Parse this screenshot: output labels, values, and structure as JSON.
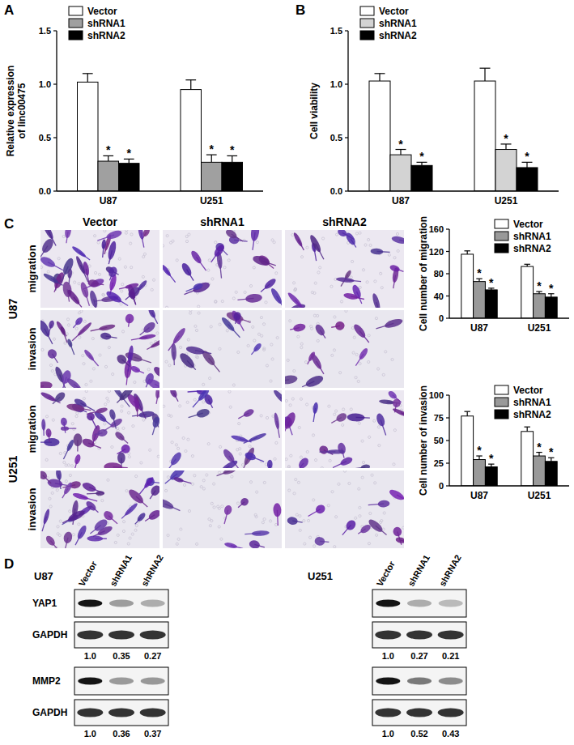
{
  "panel_labels": [
    "A",
    "B",
    "C",
    "D"
  ],
  "chart_data": [
    {
      "type": "bar",
      "y_label": "Relative expression of linc00475",
      "categories": [
        "U87",
        "U251"
      ],
      "series": [
        {
          "name": "Vector",
          "color": "#ffffff",
          "values": [
            1.02,
            0.95
          ],
          "errors": [
            0.08,
            0.09
          ]
        },
        {
          "name": "shRNA1",
          "color": "#a0a0a0",
          "values": [
            0.28,
            0.27
          ],
          "errors": [
            0.05,
            0.07
          ],
          "annotation": "*"
        },
        {
          "name": "shRNA2",
          "color": "#000000",
          "values": [
            0.26,
            0.27
          ],
          "errors": [
            0.04,
            0.06
          ],
          "annotation": "*"
        }
      ],
      "ylim": [
        0,
        1.5
      ],
      "yticks": [
        {
          "value": 0,
          "label": "0.0"
        },
        {
          "value": 0.5,
          "label": "0.5"
        },
        {
          "value": 1,
          "label": "1.0"
        },
        {
          "value": 1.5,
          "label": "1.5"
        }
      ],
      "legend": "top-left"
    },
    {
      "type": "bar",
      "y_label": "Cell viability",
      "categories": [
        "U87",
        "U251"
      ],
      "series": [
        {
          "name": "Vector",
          "color": "#ffffff",
          "values": [
            1.03,
            1.03
          ],
          "errors": [
            0.07,
            0.12
          ]
        },
        {
          "name": "shRNA1",
          "color": "#d3d3d3",
          "values": [
            0.34,
            0.39
          ],
          "errors": [
            0.05,
            0.05
          ],
          "annotation": "*"
        },
        {
          "name": "shRNA2",
          "color": "#000000",
          "values": [
            0.24,
            0.22
          ],
          "errors": [
            0.03,
            0.05
          ],
          "annotation": "*"
        }
      ],
      "ylim": [
        0,
        1.5
      ],
      "yticks": [
        {
          "value": 0,
          "label": "0.0"
        },
        {
          "value": 0.5,
          "label": "0.5"
        },
        {
          "value": 1,
          "label": "1.0"
        },
        {
          "value": 1.5,
          "label": "1.5"
        }
      ],
      "legend": "top-left"
    },
    {
      "type": "bar",
      "y_label": "Cell number of migration",
      "categories": [
        "U87",
        "U251"
      ],
      "series": [
        {
          "name": "Vector",
          "color": "#ffffff",
          "values": [
            115,
            93
          ],
          "errors": [
            6,
            4
          ]
        },
        {
          "name": "shRNA1",
          "color": "#999999",
          "values": [
            66,
            44
          ],
          "errors": [
            5,
            4
          ],
          "annotation": "*"
        },
        {
          "name": "shRNA2",
          "color": "#000000",
          "values": [
            51,
            38
          ],
          "errors": [
            3,
            6
          ],
          "annotation": "*"
        }
      ],
      "ylim": [
        0,
        160
      ],
      "yticks": [
        0,
        40,
        80,
        120,
        160
      ],
      "legend": "top-right"
    },
    {
      "type": "bar",
      "y_label": "Cell number of invasion",
      "categories": [
        "U87",
        "U251"
      ],
      "series": [
        {
          "name": "Vector",
          "color": "#ffffff",
          "values": [
            77,
            60
          ],
          "errors": [
            5,
            5
          ]
        },
        {
          "name": "shRNA1",
          "color": "#999999",
          "values": [
            29,
            33
          ],
          "errors": [
            4,
            4
          ],
          "annotation": "*"
        },
        {
          "name": "shRNA2",
          "color": "#000000",
          "values": [
            21,
            27
          ],
          "errors": [
            3,
            4
          ],
          "annotation": "*"
        }
      ],
      "ylim": [
        0,
        100
      ],
      "yticks": [
        0,
        25,
        50,
        75,
        100
      ],
      "legend": "top-right"
    }
  ],
  "micrographs": {
    "columns": [
      "Vector",
      "shRNA1",
      "shRNA2"
    ],
    "groups": [
      {
        "label": "U87",
        "rows": [
          "migration",
          "invasion"
        ]
      },
      {
        "label": "U251",
        "rows": [
          "migration",
          "invasion"
        ]
      }
    ]
  },
  "blots": [
    {
      "cell_line": "U87",
      "lanes": [
        "Vector",
        "shRNA1",
        "shRNA2"
      ],
      "proteins": [
        {
          "name": "YAP1",
          "control": "GAPDH",
          "values": [
            1,
            0.35,
            0.27
          ],
          "value_labels": [
            "1.0",
            "0.35",
            "0.27"
          ]
        },
        {
          "name": "MMP2",
          "control": "GAPDH",
          "values": [
            1,
            0.36,
            0.37
          ],
          "value_labels": [
            "1.0",
            "0.36",
            "0.37"
          ]
        }
      ]
    },
    {
      "cell_line": "U251",
      "lanes": [
        "Vector",
        "shRNA1",
        "shRNA2"
      ],
      "proteins": [
        {
          "values": [
            1,
            0.27,
            0.21
          ],
          "value_labels": [
            "1.0",
            "0.27",
            "0.21"
          ]
        },
        {
          "values": [
            1,
            0.52,
            0.43
          ],
          "value_labels": [
            "1.0",
            "0.52",
            "0.43"
          ]
        }
      ]
    }
  ]
}
